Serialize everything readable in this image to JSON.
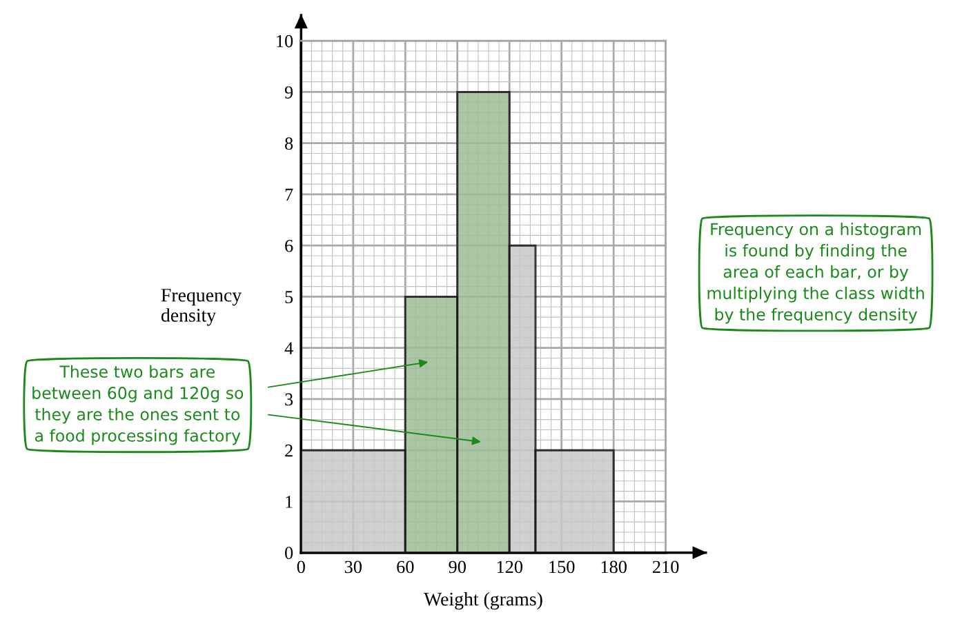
{
  "chart_data": {
    "type": "histogram",
    "xlabel": "Weight (grams)",
    "ylabel": "Frequency\ndensity",
    "bins": [
      0,
      60,
      90,
      120,
      135,
      180
    ],
    "values": [
      2,
      5,
      9,
      6,
      2
    ],
    "colors": [
      "#c8c8c8",
      "#9dbd96",
      "#9dbd96",
      "#c8c8c8",
      "#c8c8c8"
    ],
    "xlim": [
      0,
      210
    ],
    "xticks": [
      0,
      30,
      60,
      90,
      120,
      150,
      180,
      210
    ],
    "ylim": [
      0,
      10
    ],
    "yticks": [
      0,
      1,
      2,
      3,
      4,
      5,
      6,
      7,
      8,
      9,
      10
    ],
    "grid": true,
    "annotations": [
      "These two bars are\nbetween 60g and 120g so\nthey are the ones sent to\na food processing factory",
      "Frequency on a histogram\nis found by finding the\narea of each bar, or by\nmultiplying the class width\nby the frequency density"
    ]
  }
}
